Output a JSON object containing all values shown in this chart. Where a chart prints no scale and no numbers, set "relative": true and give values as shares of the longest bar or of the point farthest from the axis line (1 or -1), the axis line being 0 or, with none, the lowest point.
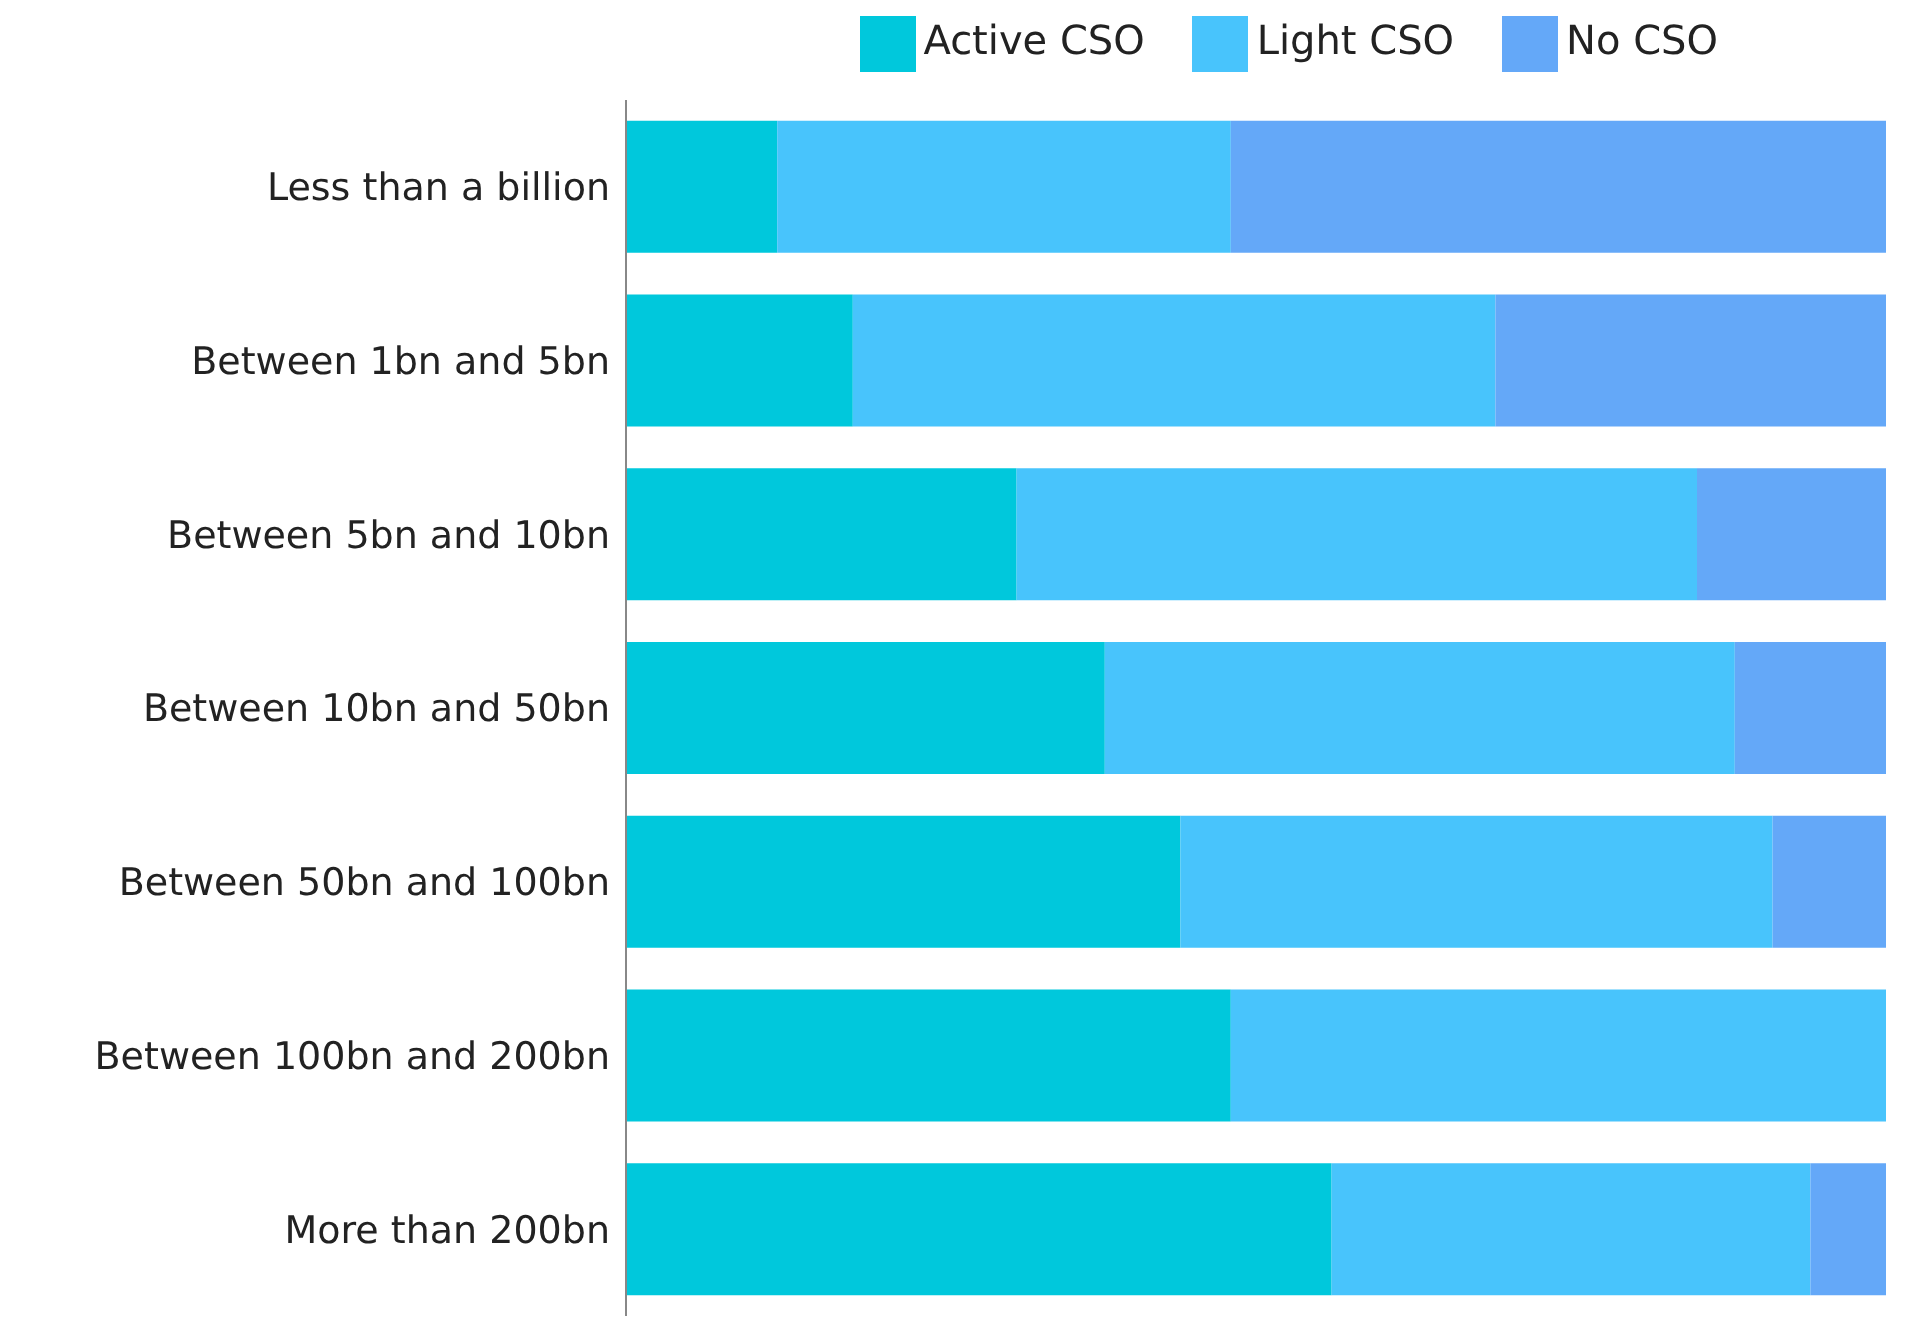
{
  "chart_data": {
    "type": "bar",
    "orientation": "horizontal",
    "stacked": true,
    "relative": true,
    "legend": "top right",
    "categories": [
      "Less than a billion",
      "Between 1bn and 5bn",
      "Between 5bn and 10bn",
      "Between 10bn and 50bn",
      "Between 50bn and 100bn",
      "Between 100bn and 200bn",
      "More than 200bn"
    ],
    "series": [
      {
        "name": "Active CSO",
        "color": "#00c8dc",
        "values": [
          0.12,
          0.18,
          0.31,
          0.38,
          0.44,
          0.48,
          0.56
        ]
      },
      {
        "name": "Light CSO",
        "color": "#48c4fc",
        "values": [
          0.36,
          0.51,
          0.54,
          0.5,
          0.47,
          0.52,
          0.38
        ]
      },
      {
        "name": "No CSO",
        "color": "#64a8f8",
        "values": [
          0.52,
          0.31,
          0.15,
          0.12,
          0.09,
          0,
          0.06
        ]
      }
    ]
  }
}
